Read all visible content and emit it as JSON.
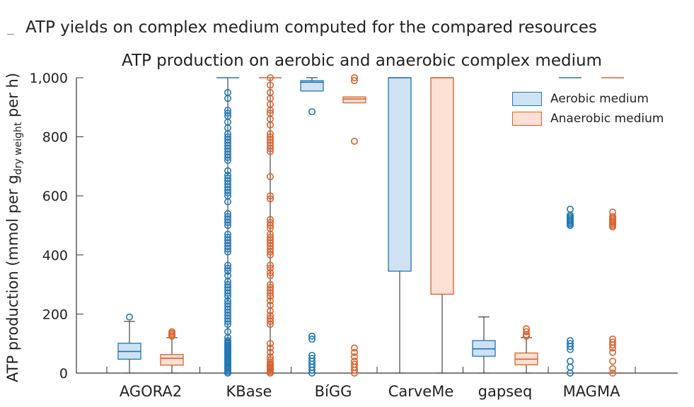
{
  "figure_title": "ATP yields on complex medium computed for the compared resources",
  "chart_data": {
    "type": "box",
    "title": "ATP production on aerobic and anaerobic complex medium",
    "ylabel": {
      "base": "ATP production (mmol per g",
      "sub": "dry weight",
      "tail": " per h)"
    },
    "xlabel": "",
    "ylim": [
      0,
      1000
    ],
    "yticks": [
      0,
      200,
      400,
      600,
      800,
      1000
    ],
    "ytick_labels": [
      "0",
      "200",
      "400",
      "600",
      "800",
      "1,000"
    ],
    "categories": [
      "AGORA2",
      "KBase",
      "BiGG",
      "CarveMe",
      "gapseq",
      "MAGMA"
    ],
    "category_labels": [
      "AGORA2",
      "KBase",
      "BíGG",
      "CarveMe",
      "gapseq",
      "MAGMA"
    ],
    "colors": {
      "aerobic_fill": "#cfe2f3",
      "aerobic_line": "#1f77b4",
      "anaerobic_fill": "#fbe0d3",
      "anaerobic_line": "#d9622b"
    },
    "legend": [
      "Aerobic medium",
      "Anaerobic medium"
    ],
    "series": [
      {
        "name": "Aerobic medium",
        "boxes": [
          {
            "min": 0,
            "q1": 47,
            "median": 73,
            "q3": 101,
            "max": 175,
            "outliers": [
              190
            ]
          },
          {
            "min": 0,
            "q1": 1000,
            "median": 1000,
            "q3": 1000,
            "max": 1000,
            "outliers": [
              0,
              5,
              10,
              15,
              20,
              25,
              30,
              35,
              40,
              45,
              50,
              55,
              60,
              65,
              70,
              75,
              80,
              85,
              90,
              95,
              100,
              105,
              110,
              120,
              140,
              165,
              175,
              185,
              195,
              205,
              215,
              225,
              235,
              245,
              260,
              270,
              280,
              290,
              300,
              310,
              330,
              345,
              355,
              365,
              410,
              420,
              430,
              440,
              450,
              460,
              470,
              500,
              510,
              520,
              530,
              540,
              580,
              600,
              610,
              620,
              630,
              640,
              650,
              660,
              670,
              685,
              720,
              730,
              740,
              750,
              760,
              770,
              780,
              790,
              800,
              810,
              830,
              850,
              870,
              880,
              890,
              930,
              950
            ]
          },
          {
            "min": 955,
            "q1": 955,
            "median": 985,
            "q3": 990,
            "max": 1000,
            "outliers": [
              0,
              10,
              20,
              30,
              40,
              50,
              60,
              115,
              125,
              885
            ]
          },
          {
            "min": 0,
            "q1": 345,
            "median": 1000,
            "q3": 1000,
            "max": 1000,
            "outliers": []
          },
          {
            "min": 0,
            "q1": 57,
            "median": 82,
            "q3": 110,
            "max": 190,
            "outliers": []
          },
          {
            "min": 1000,
            "q1": 1000,
            "median": 1000,
            "q3": 1000,
            "max": 1000,
            "outliers": [
              0,
              20,
              40,
              80,
              90,
              100,
              110,
              500,
              505,
              510,
              515,
              520,
              525,
              530,
              535,
              555
            ]
          }
        ]
      },
      {
        "name": "Anaerobic medium",
        "boxes": [
          {
            "min": 0,
            "q1": 27,
            "median": 50,
            "q3": 63,
            "max": 120,
            "outliers": [
              125,
              130,
              135,
              140
            ]
          },
          {
            "min": 0,
            "q1": 1000,
            "median": 1000,
            "q3": 1000,
            "max": 1000,
            "outliers": [
              0,
              5,
              10,
              15,
              20,
              25,
              30,
              35,
              45,
              55,
              70,
              85,
              100,
              165,
              175,
              185,
              195,
              210,
              230,
              245,
              260,
              270,
              280,
              290,
              300,
              330,
              340,
              355,
              365,
              400,
              410,
              420,
              430,
              440,
              450,
              460,
              470,
              490,
              500,
              510,
              520,
              590,
              600,
              665,
              750,
              760,
              770,
              780,
              790,
              800,
              810,
              840,
              860,
              880,
              890,
              910,
              930,
              950,
              975,
              1000
            ]
          },
          {
            "min": 915,
            "q1": 915,
            "median": 928,
            "q3": 935,
            "max": 935,
            "outliers": [
              0,
              10,
              20,
              30,
              40,
              55,
              70,
              85,
              785,
              990,
              1000
            ]
          },
          {
            "min": 0,
            "q1": 267,
            "median": 1000,
            "q3": 1000,
            "max": 1000,
            "outliers": []
          },
          {
            "min": 0,
            "q1": 28,
            "median": 47,
            "q3": 68,
            "max": 120,
            "outliers": [
              125,
              130,
              140,
              150
            ]
          },
          {
            "min": 1000,
            "q1": 1000,
            "median": 1000,
            "q3": 1000,
            "max": 1000,
            "outliers": [
              0,
              15,
              40,
              70,
              85,
              95,
              105,
              115,
              495,
              500,
              505,
              510,
              515,
              520,
              525,
              530,
              545
            ]
          }
        ]
      }
    ]
  }
}
